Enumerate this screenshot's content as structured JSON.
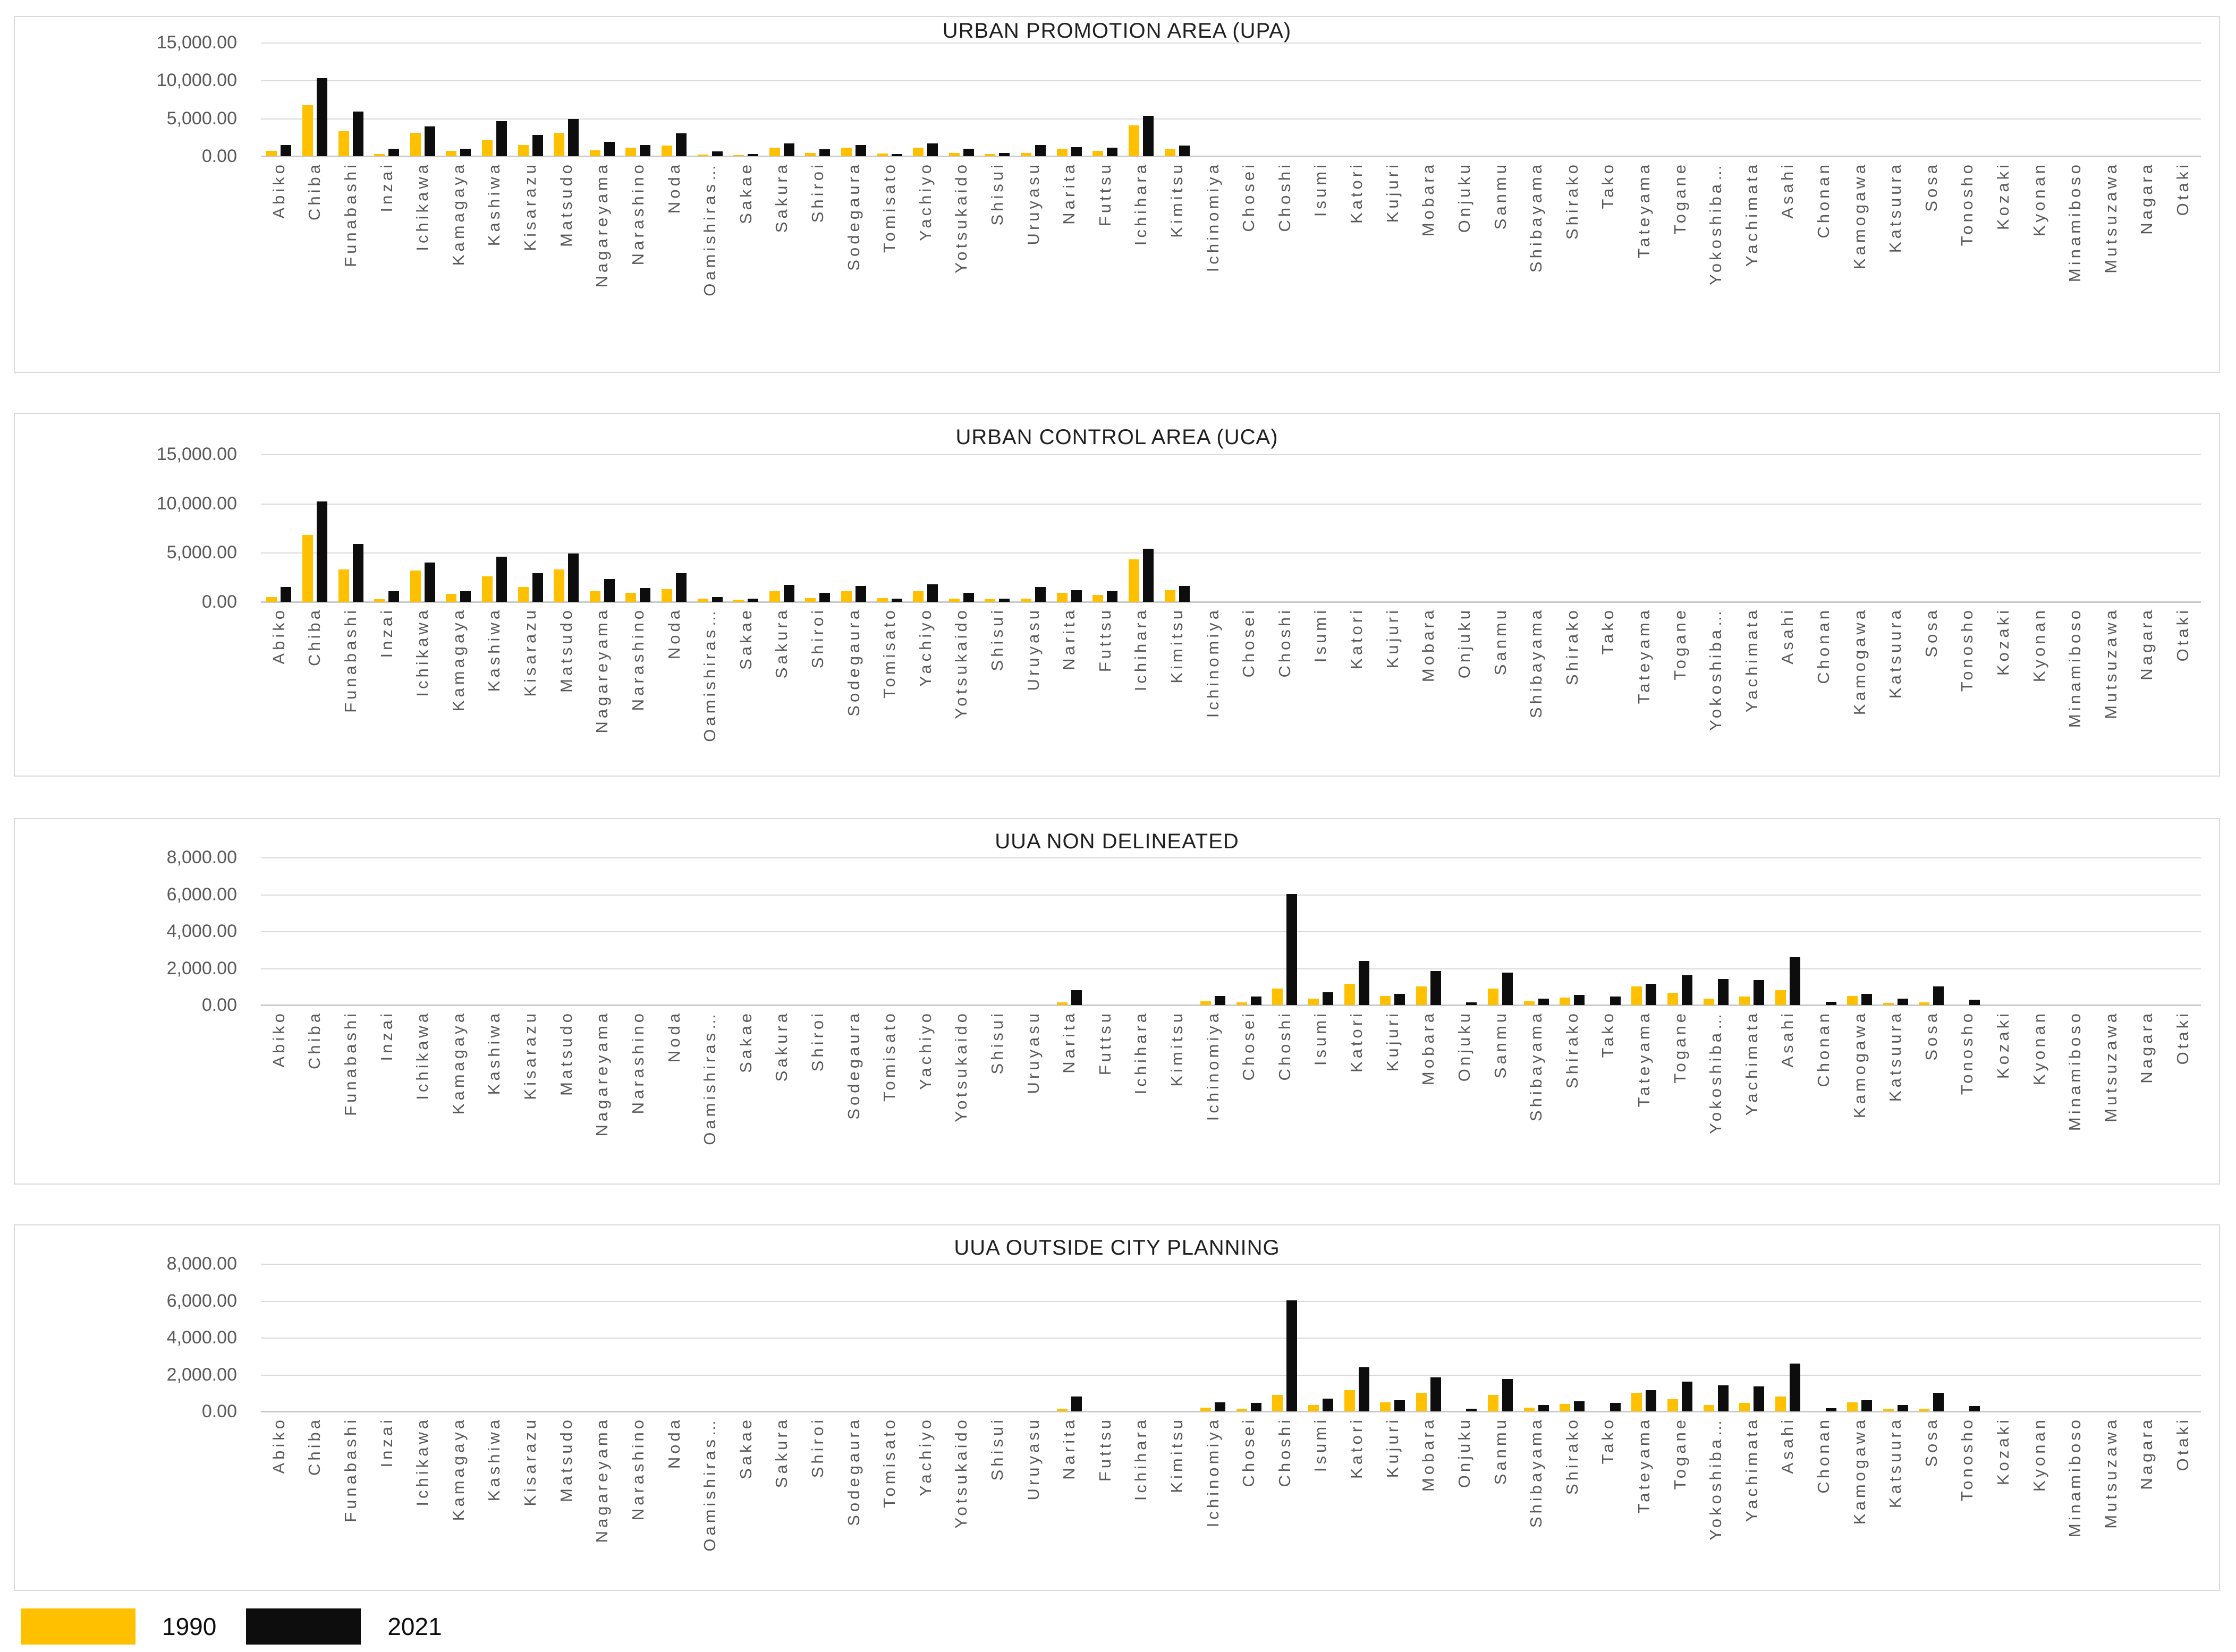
{
  "page": {
    "background": "#ffffff"
  },
  "legend": {
    "position": "bottom-left",
    "items": [
      {
        "label": "1990",
        "color": "#FFC000"
      },
      {
        "label": "2021",
        "color": "#0D0D0D"
      }
    ]
  },
  "categories": [
    "Abiko",
    "Chiba",
    "Funabashi",
    "Inzai",
    "Ichikawa",
    "Kamagaya",
    "Kashiwa",
    "Kisarazu",
    "Matsudo",
    "Nagareyama",
    "Narashino",
    "Noda",
    "Oamishiras…",
    "Sakae",
    "Sakura",
    "Shiroi",
    "Sodegaura",
    "Tomisato",
    "Yachiyo",
    "Yotsukaido",
    "Shisui",
    "Uruyasu",
    "Narita",
    "Futtsu",
    "Ichihara",
    "Kimitsu",
    "Ichinomiya",
    "Chosei",
    "Choshi",
    "Isumi",
    "Katori",
    "Kujuri",
    "Mobara",
    "Onjuku",
    "Sanmu",
    "Shibayama",
    "Shirako",
    "Tako",
    "Tateyama",
    "Togane",
    "Yokoshiba…",
    "Yachimata",
    "Asahi",
    "Chonan",
    "Kamogawa",
    "Katsuura",
    "Sosa",
    "Tonosho",
    "Kozaki",
    "Kyonan",
    "Minamiboso",
    "Mutsuzawa",
    "Nagara",
    "Otaki"
  ],
  "chart_data": [
    {
      "type": "bar",
      "title": "URBAN PROMOTION AREA (UPA)",
      "xlabel": "",
      "ylabel": "",
      "ylim": [
        0,
        15000
      ],
      "grid": true,
      "yticks": [
        {
          "value": 0,
          "label": "0.00"
        },
        {
          "value": 5000,
          "label": "5,000.00"
        },
        {
          "value": 10000,
          "label": "10,000.00"
        },
        {
          "value": 15000,
          "label": "15,000.00"
        }
      ],
      "series": [
        {
          "name": "1990",
          "color": "#FFC000",
          "values": [
            700,
            6700,
            3300,
            300,
            3100,
            700,
            2100,
            1500,
            3100,
            800,
            1100,
            1400,
            200,
            150,
            1100,
            400,
            1100,
            350,
            1100,
            400,
            250,
            400,
            1000,
            700,
            4100,
            900,
            0,
            0,
            0,
            0,
            0,
            0,
            0,
            0,
            0,
            0,
            0,
            0,
            0,
            0,
            0,
            0,
            0,
            0,
            0,
            0,
            0,
            0,
            0,
            0,
            0,
            0,
            0,
            0
          ]
        },
        {
          "name": "2021",
          "color": "#0D0D0D",
          "values": [
            1500,
            10300,
            5900,
            1000,
            3900,
            1000,
            4600,
            2800,
            4900,
            1900,
            1500,
            3000,
            600,
            300,
            1700,
            900,
            1500,
            250,
            1700,
            1000,
            400,
            1500,
            1200,
            1100,
            5300,
            1400,
            0,
            0,
            0,
            0,
            0,
            0,
            0,
            0,
            0,
            0,
            0,
            0,
            0,
            0,
            0,
            0,
            0,
            0,
            0,
            0,
            0,
            0,
            0,
            0,
            0,
            0,
            0,
            0
          ]
        }
      ]
    },
    {
      "type": "bar",
      "title": "URBAN CONTROL AREA (UCA)",
      "xlabel": "",
      "ylabel": "",
      "ylim": [
        0,
        15000
      ],
      "grid": true,
      "yticks": [
        {
          "value": 0,
          "label": "0.00"
        },
        {
          "value": 5000,
          "label": "5,000.00"
        },
        {
          "value": 10000,
          "label": "10,000.00"
        },
        {
          "value": 15000,
          "label": "15,000.00"
        }
      ],
      "series": [
        {
          "name": "1990",
          "color": "#FFC000",
          "values": [
            500,
            6800,
            3300,
            250,
            3200,
            800,
            2600,
            1500,
            3300,
            1100,
            900,
            1300,
            300,
            200,
            1100,
            400,
            1100,
            400,
            1100,
            300,
            250,
            300,
            900,
            700,
            4300,
            1200,
            0,
            0,
            0,
            0,
            0,
            0,
            0,
            0,
            0,
            0,
            0,
            0,
            0,
            0,
            0,
            0,
            0,
            0,
            0,
            0,
            0,
            0,
            0,
            0,
            0,
            0,
            0,
            0
          ]
        },
        {
          "name": "2021",
          "color": "#0D0D0D",
          "values": [
            1500,
            10200,
            5900,
            1100,
            4000,
            1100,
            4600,
            2900,
            4900,
            2300,
            1400,
            2900,
            500,
            300,
            1700,
            900,
            1600,
            300,
            1800,
            900,
            350,
            1500,
            1200,
            1100,
            5400,
            1600,
            0,
            0,
            0,
            0,
            0,
            0,
            0,
            0,
            0,
            0,
            0,
            0,
            0,
            0,
            0,
            0,
            0,
            0,
            0,
            0,
            0,
            0,
            0,
            0,
            0,
            0,
            0,
            0
          ]
        }
      ]
    },
    {
      "type": "bar",
      "title": "UUA NON DELINEATED",
      "xlabel": "",
      "ylabel": "",
      "ylim": [
        0,
        8000
      ],
      "grid": true,
      "yticks": [
        {
          "value": 0,
          "label": "0.00"
        },
        {
          "value": 2000,
          "label": "2,000.00"
        },
        {
          "value": 4000,
          "label": "4,000.00"
        },
        {
          "value": 6000,
          "label": "6,000.00"
        },
        {
          "value": 8000,
          "label": "8,000.00"
        }
      ],
      "series": [
        {
          "name": "1990",
          "color": "#FFC000",
          "values": [
            0,
            0,
            0,
            0,
            0,
            0,
            0,
            0,
            0,
            0,
            0,
            0,
            0,
            0,
            0,
            0,
            0,
            0,
            0,
            0,
            0,
            0,
            150,
            0,
            0,
            0,
            200,
            150,
            900,
            350,
            1150,
            500,
            1000,
            0,
            900,
            200,
            400,
            0,
            1000,
            650,
            350,
            450,
            800,
            0,
            500,
            120,
            150,
            0,
            0,
            0,
            0,
            0,
            0,
            0
          ]
        },
        {
          "name": "2021",
          "color": "#0D0D0D",
          "values": [
            0,
            0,
            0,
            0,
            0,
            0,
            0,
            0,
            0,
            0,
            0,
            0,
            0,
            0,
            0,
            0,
            0,
            0,
            0,
            0,
            0,
            0,
            800,
            0,
            0,
            0,
            500,
            450,
            6000,
            700,
            2400,
            600,
            1850,
            150,
            1750,
            350,
            550,
            450,
            1150,
            1600,
            1400,
            1350,
            2600,
            180,
            600,
            350,
            1000,
            300,
            0,
            0,
            0,
            0,
            0,
            0
          ]
        }
      ]
    },
    {
      "type": "bar",
      "title": "UUA OUTSIDE CITY PLANNING",
      "xlabel": "",
      "ylabel": "",
      "ylim": [
        0,
        8000
      ],
      "grid": true,
      "yticks": [
        {
          "value": 0,
          "label": "0.00"
        },
        {
          "value": 2000,
          "label": "2,000.00"
        },
        {
          "value": 4000,
          "label": "4,000.00"
        },
        {
          "value": 6000,
          "label": "6,000.00"
        },
        {
          "value": 8000,
          "label": "8,000.00"
        }
      ],
      "series": [
        {
          "name": "1990",
          "color": "#FFC000",
          "values": [
            0,
            0,
            0,
            0,
            0,
            0,
            0,
            0,
            0,
            0,
            0,
            0,
            0,
            0,
            0,
            0,
            0,
            0,
            0,
            0,
            0,
            0,
            150,
            0,
            0,
            0,
            200,
            150,
            900,
            350,
            1150,
            500,
            1000,
            0,
            900,
            200,
            400,
            0,
            1000,
            650,
            350,
            450,
            800,
            0,
            500,
            120,
            150,
            0,
            0,
            0,
            0,
            0,
            0,
            0
          ]
        },
        {
          "name": "2021",
          "color": "#0D0D0D",
          "values": [
            0,
            0,
            0,
            0,
            0,
            0,
            0,
            0,
            0,
            0,
            0,
            0,
            0,
            0,
            0,
            0,
            0,
            0,
            0,
            0,
            0,
            0,
            800,
            0,
            0,
            0,
            500,
            450,
            6000,
            700,
            2400,
            600,
            1850,
            150,
            1750,
            350,
            550,
            450,
            1150,
            1600,
            1400,
            1350,
            2600,
            180,
            600,
            350,
            1000,
            300,
            0,
            0,
            0,
            0,
            0,
            0
          ]
        }
      ]
    }
  ]
}
